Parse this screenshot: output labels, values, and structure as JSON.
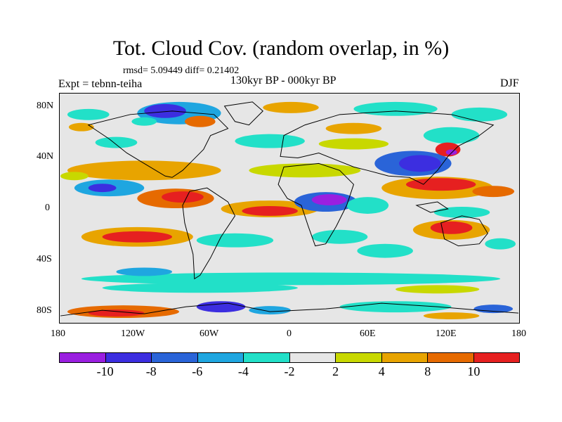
{
  "title": "Tot. Cloud Cov. (random overlap, in %)",
  "stats": "rmsd= 5.09449 diff= 0.21402",
  "experiment": "Expt = tebnn-teiha",
  "period": "130kyr BP - 000kyr BP",
  "season": "DJF",
  "axes": {
    "y_ticks": [
      "80N",
      "40N",
      "0",
      "40S",
      "80S"
    ],
    "x_ticks": [
      "180",
      "120W",
      "60W",
      "0",
      "60E",
      "120E",
      "180"
    ]
  },
  "colorbar": {
    "colors": [
      "#9a1fe0",
      "#3c2ee0",
      "#2a64d8",
      "#1fa6e0",
      "#22e0c8",
      "#e6e6e6",
      "#c8d800",
      "#e8a400",
      "#e66a00",
      "#e62020"
    ],
    "labels": [
      "-10",
      "-8",
      "-6",
      "-4",
      "-2",
      "2",
      "4",
      "8",
      "10"
    ]
  }
}
